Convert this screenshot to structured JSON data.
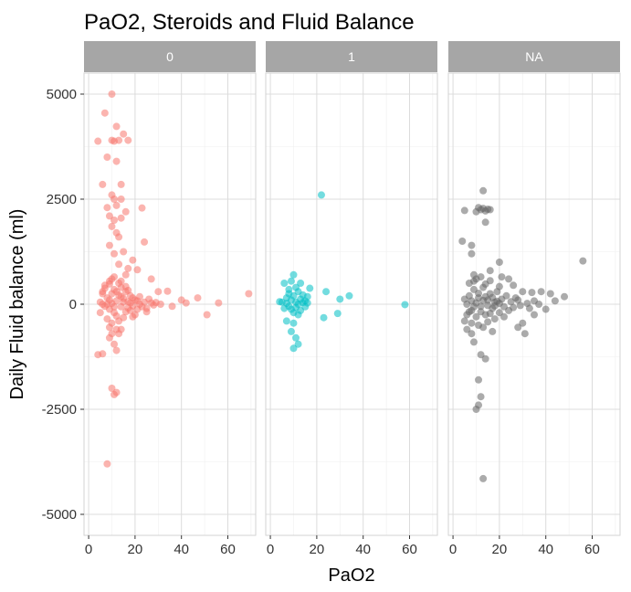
{
  "chart_data": {
    "type": "scatter",
    "title": "PaO2, Steroids and Fluid Balance",
    "xlabel": "PaO2",
    "ylabel": "Daily Fluid balance (ml)",
    "xlim": [
      -2,
      72
    ],
    "ylim": [
      -5500,
      5500
    ],
    "x_ticks": [
      0,
      20,
      40,
      60
    ],
    "y_ticks": [
      -5000,
      -2500,
      0,
      2500,
      5000
    ],
    "grid": true,
    "legend": "none",
    "point_alpha": 0.55,
    "facets": [
      {
        "label": "0",
        "color": "#F8766D",
        "points": [
          [
            10,
            5000
          ],
          [
            7,
            4550
          ],
          [
            12,
            4230
          ],
          [
            15,
            4050
          ],
          [
            10,
            3900
          ],
          [
            11,
            3880
          ],
          [
            13,
            3900
          ],
          [
            17,
            3900
          ],
          [
            4,
            3880
          ],
          [
            8,
            3500
          ],
          [
            12,
            3400
          ],
          [
            6,
            2850
          ],
          [
            14,
            2850
          ],
          [
            10,
            2600
          ],
          [
            11,
            2500
          ],
          [
            14,
            2500
          ],
          [
            12,
            2350
          ],
          [
            8,
            2300
          ],
          [
            23,
            2290
          ],
          [
            16,
            2200
          ],
          [
            9,
            2100
          ],
          [
            11,
            2000
          ],
          [
            14,
            2050
          ],
          [
            10,
            1850
          ],
          [
            12,
            1700
          ],
          [
            13,
            1600
          ],
          [
            9,
            1400
          ],
          [
            24,
            1480
          ],
          [
            11,
            1200
          ],
          [
            15,
            1250
          ],
          [
            19,
            1050
          ],
          [
            13,
            950
          ],
          [
            17,
            850
          ],
          [
            21,
            820
          ],
          [
            16,
            700
          ],
          [
            11,
            650
          ],
          [
            9,
            550
          ],
          [
            27,
            600
          ],
          [
            6,
            300
          ],
          [
            14,
            400
          ],
          [
            30,
            300
          ],
          [
            34,
            310
          ],
          [
            40,
            100
          ],
          [
            42,
            30
          ],
          [
            47,
            150
          ],
          [
            51,
            -250
          ],
          [
            56,
            30
          ],
          [
            69,
            250
          ],
          [
            4,
            -1200
          ],
          [
            6,
            -1180
          ],
          [
            10,
            -2000
          ],
          [
            11,
            -2150
          ],
          [
            12,
            -2100
          ],
          [
            8,
            -3800
          ],
          [
            10,
            -700
          ],
          [
            14,
            -600
          ],
          [
            11,
            -950
          ],
          [
            12,
            -1100
          ],
          [
            9,
            -800
          ],
          [
            13,
            -700
          ],
          [
            6,
            0
          ],
          [
            8,
            150
          ],
          [
            9,
            -120
          ],
          [
            10,
            250
          ],
          [
            11,
            -200
          ],
          [
            12,
            80
          ],
          [
            13,
            220
          ],
          [
            14,
            -60
          ],
          [
            15,
            140
          ],
          [
            16,
            -180
          ],
          [
            17,
            60
          ],
          [
            18,
            200
          ],
          [
            19,
            -40
          ],
          [
            20,
            100
          ],
          [
            22,
            0
          ],
          [
            24,
            50
          ],
          [
            26,
            120
          ],
          [
            28,
            -20
          ],
          [
            7,
            450
          ],
          [
            8,
            -350
          ],
          [
            9,
            480
          ],
          [
            10,
            -450
          ],
          [
            11,
            350
          ],
          [
            12,
            -280
          ],
          [
            13,
            500
          ],
          [
            15,
            -320
          ],
          [
            16,
            420
          ],
          [
            18,
            -150
          ],
          [
            20,
            -250
          ],
          [
            22,
            180
          ],
          [
            25,
            -100
          ],
          [
            29,
            40
          ],
          [
            5,
            -200
          ],
          [
            6,
            250
          ],
          [
            7,
            -50
          ],
          [
            8,
            0
          ],
          [
            9,
            100
          ],
          [
            10,
            20
          ],
          [
            11,
            -60
          ],
          [
            12,
            300
          ],
          [
            13,
            -400
          ],
          [
            14,
            180
          ],
          [
            15,
            50
          ],
          [
            16,
            300
          ],
          [
            17,
            -90
          ],
          [
            18,
            30
          ],
          [
            19,
            150
          ],
          [
            21,
            -120
          ],
          [
            23,
            -60
          ],
          [
            27,
            30
          ],
          [
            5,
            50
          ],
          [
            7,
            380
          ],
          [
            9,
            -550
          ],
          [
            10,
            600
          ],
          [
            12,
            -600
          ],
          [
            14,
            550
          ],
          [
            17,
            330
          ],
          [
            19,
            -300
          ],
          [
            21,
            80
          ],
          [
            25,
            -180
          ],
          [
            31,
            0
          ],
          [
            36,
            -50
          ]
        ]
      },
      {
        "label": "1",
        "color": "#00BFC4",
        "points": [
          [
            22,
            2600
          ],
          [
            10,
            700
          ],
          [
            6,
            500
          ],
          [
            9,
            550
          ],
          [
            13,
            500
          ],
          [
            17,
            380
          ],
          [
            24,
            300
          ],
          [
            34,
            200
          ],
          [
            30,
            120
          ],
          [
            58,
            -10
          ],
          [
            23,
            -320
          ],
          [
            29,
            -220
          ],
          [
            10,
            -450
          ],
          [
            9,
            -650
          ],
          [
            11,
            -800
          ],
          [
            12,
            -950
          ],
          [
            10,
            -1050
          ],
          [
            7,
            -400
          ],
          [
            5,
            50
          ],
          [
            7,
            150
          ],
          [
            8,
            250
          ],
          [
            9,
            100
          ],
          [
            10,
            200
          ],
          [
            11,
            50
          ],
          [
            12,
            300
          ],
          [
            13,
            120
          ],
          [
            14,
            220
          ],
          [
            15,
            80
          ],
          [
            16,
            180
          ],
          [
            8,
            -50
          ],
          [
            9,
            -120
          ],
          [
            10,
            -200
          ],
          [
            11,
            -80
          ],
          [
            12,
            0
          ],
          [
            13,
            -150
          ],
          [
            14,
            40
          ],
          [
            6,
            -100
          ],
          [
            7,
            20
          ],
          [
            8,
            350
          ],
          [
            11,
            400
          ],
          [
            12,
            -250
          ],
          [
            15,
            -60
          ],
          [
            16,
            30
          ],
          [
            4,
            60
          ]
        ]
      },
      {
        "label": "NA",
        "color": "#666666",
        "points": [
          [
            13,
            2700
          ],
          [
            5,
            2230
          ],
          [
            11,
            2300
          ],
          [
            12,
            2250
          ],
          [
            13,
            2280
          ],
          [
            14,
            2220
          ],
          [
            15,
            2260
          ],
          [
            10,
            2200
          ],
          [
            16,
            2250
          ],
          [
            14,
            1950
          ],
          [
            4,
            1500
          ],
          [
            8,
            1400
          ],
          [
            8,
            1200
          ],
          [
            20,
            1000
          ],
          [
            16,
            800
          ],
          [
            9,
            700
          ],
          [
            21,
            650
          ],
          [
            24,
            600
          ],
          [
            26,
            450
          ],
          [
            30,
            300
          ],
          [
            34,
            280
          ],
          [
            38,
            300
          ],
          [
            42,
            250
          ],
          [
            56,
            1030
          ],
          [
            40,
            -120
          ],
          [
            35,
            -250
          ],
          [
            30,
            -450
          ],
          [
            28,
            -550
          ],
          [
            31,
            -700
          ],
          [
            17,
            -650
          ],
          [
            12,
            -1200
          ],
          [
            14,
            -1300
          ],
          [
            11,
            -1800
          ],
          [
            12,
            -2200
          ],
          [
            11,
            -2400
          ],
          [
            10,
            -2500
          ],
          [
            13,
            -4150
          ],
          [
            5,
            -400
          ],
          [
            6,
            -600
          ],
          [
            9,
            -900
          ],
          [
            8,
            -700
          ],
          [
            6,
            0
          ],
          [
            7,
            200
          ],
          [
            8,
            -150
          ],
          [
            9,
            350
          ],
          [
            10,
            -300
          ],
          [
            11,
            150
          ],
          [
            12,
            -50
          ],
          [
            13,
            400
          ],
          [
            14,
            -250
          ],
          [
            15,
            100
          ],
          [
            16,
            250
          ],
          [
            17,
            -100
          ],
          [
            18,
            50
          ],
          [
            19,
            300
          ],
          [
            20,
            -200
          ],
          [
            21,
            120
          ],
          [
            22,
            -60
          ],
          [
            23,
            200
          ],
          [
            24,
            -150
          ],
          [
            25,
            60
          ],
          [
            26,
            -80
          ],
          [
            28,
            100
          ],
          [
            29,
            -30
          ],
          [
            32,
            20
          ],
          [
            35,
            80
          ],
          [
            7,
            500
          ],
          [
            8,
            -450
          ],
          [
            9,
            550
          ],
          [
            10,
            600
          ],
          [
            11,
            -500
          ],
          [
            12,
            650
          ],
          [
            13,
            -550
          ],
          [
            14,
            480
          ],
          [
            15,
            -420
          ],
          [
            16,
            560
          ],
          [
            18,
            -350
          ],
          [
            20,
            420
          ],
          [
            22,
            -300
          ],
          [
            5,
            120
          ],
          [
            6,
            -250
          ],
          [
            7,
            -180
          ],
          [
            8,
            80
          ],
          [
            9,
            -60
          ],
          [
            10,
            30
          ],
          [
            11,
            260
          ],
          [
            12,
            -180
          ],
          [
            13,
            90
          ],
          [
            14,
            180
          ],
          [
            15,
            -30
          ],
          [
            16,
            -220
          ],
          [
            17,
            160
          ],
          [
            18,
            -40
          ],
          [
            19,
            70
          ],
          [
            20,
            20
          ],
          [
            27,
            150
          ],
          [
            33,
            -100
          ],
          [
            37,
            0
          ],
          [
            44,
            80
          ],
          [
            48,
            180
          ]
        ]
      }
    ]
  }
}
